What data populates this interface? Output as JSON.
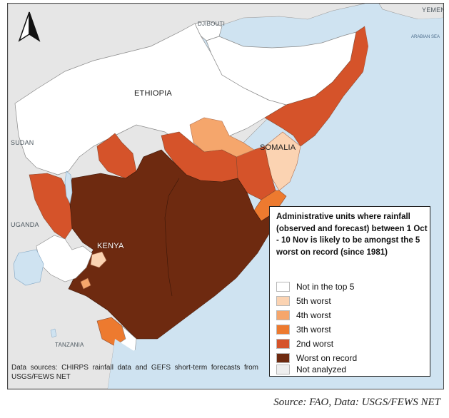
{
  "map": {
    "labels": {
      "ethiopia": "ETHIOPIA",
      "somalia": "SOMALIA",
      "kenya": "KENYA",
      "djibouti": "DJIBOUTI",
      "yemen": "YEMEN",
      "sudan": "SUDAN",
      "uganda": "UGANDA",
      "tanzania": "TANZANIA",
      "arabian_sea": "ARABIAN SEA"
    },
    "north_arrow_icon": "north-arrow-icon",
    "colors": {
      "not_in_top5": "#ffffff",
      "fifth_worst": "#fbd3b2",
      "fourth_worst": "#f5a66c",
      "third_worst": "#ed7a2f",
      "second_worst": "#d5532a",
      "worst_on_record": "#6e2a10",
      "not_analyzed": "#eeeeee",
      "water": "#cfe3f1",
      "background_land": "#e6e6e6"
    }
  },
  "legend": {
    "title": "Administrative units where rainfall (observed and forecast) between 1 Oct - 10 Nov is likely to be amongst the 5 worst on record (since 1981)",
    "items": [
      {
        "label": "Not in the top 5",
        "color": "#ffffff"
      },
      {
        "label": "5th worst",
        "color": "#fbd3b2"
      },
      {
        "label": "4th worst",
        "color": "#f5a66c"
      },
      {
        "label": "3th worst",
        "color": "#ed7a2f"
      },
      {
        "label": "2nd worst",
        "color": "#d5532a"
      },
      {
        "label": "Worst on record",
        "color": "#6e2a10"
      },
      {
        "label": "Not analyzed",
        "color": "#eeeeee"
      }
    ]
  },
  "data_sources": "Data sources: CHIRPS rainfall data and GEFS short-term forecasts from USGS/FEWS NET",
  "source_caption": "Source: FAO, Data: USGS/FEWS NET"
}
